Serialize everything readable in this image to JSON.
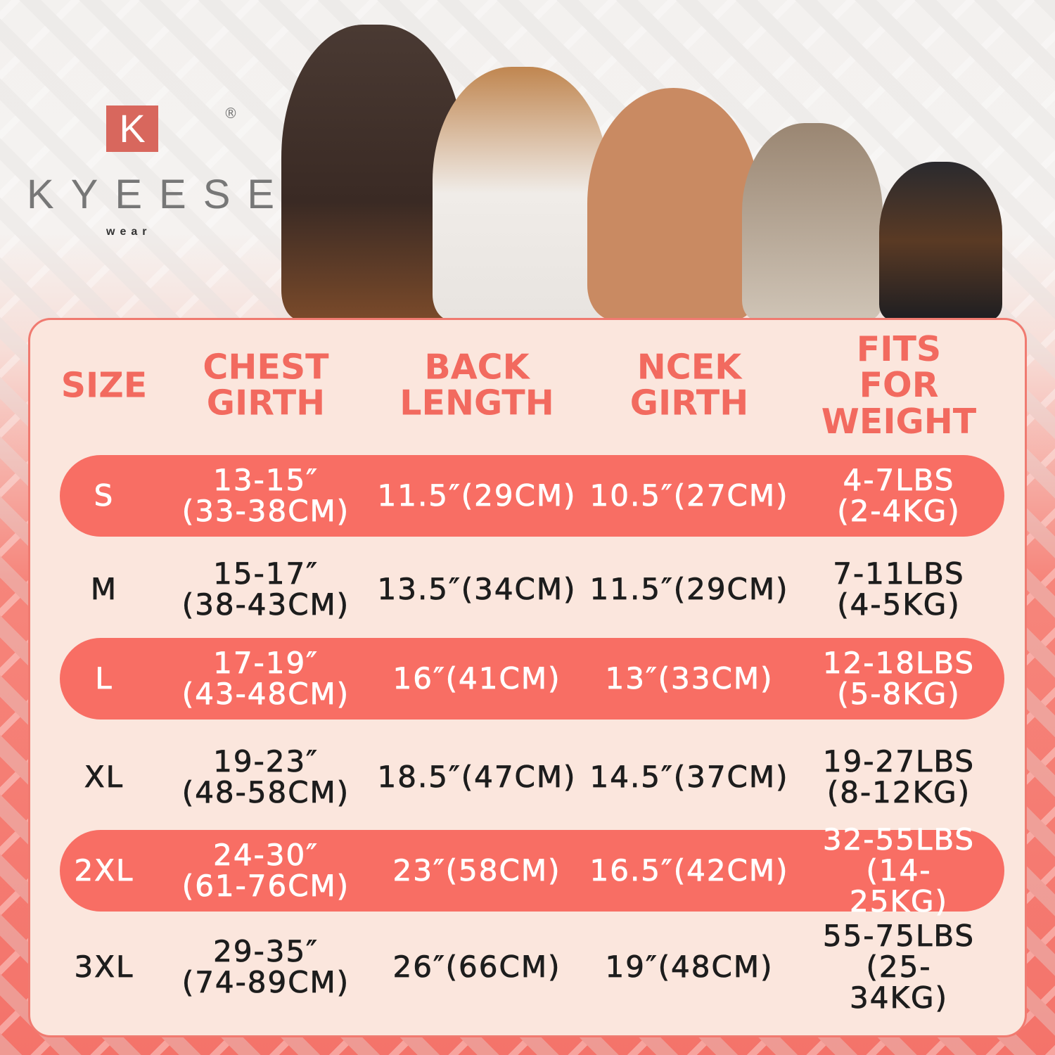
{
  "brand": {
    "mark": "K",
    "registered": "®",
    "name": "KYEESE",
    "sub": "wear",
    "color": "#d8675d"
  },
  "colors": {
    "accent": "#f86e64",
    "panel": "#fbe6dd",
    "header_text": "#f26a5f"
  },
  "table": {
    "headers": [
      "SIZE",
      "CHEST\nGIRTH",
      "BACK\nLENGTH",
      "NCEK\nGIRTH",
      "FITS FOR\nWEIGHT"
    ],
    "rows": [
      {
        "size": "S",
        "chest": "13-15″\n(33-38CM)",
        "back": "11.5″(29CM)",
        "neck": "10.5″(27CM)",
        "weight": "4-7LBS\n(2-4KG)",
        "highlight": true
      },
      {
        "size": "M",
        "chest": "15-17″\n(38-43CM)",
        "back": "13.5″(34CM)",
        "neck": "11.5″(29CM)",
        "weight": "7-11LBS\n(4-5KG)",
        "highlight": false
      },
      {
        "size": "L",
        "chest": "17-19″\n(43-48CM)",
        "back": "16″(41CM)",
        "neck": "13″(33CM)",
        "weight": "12-18LBS\n(5-8KG)",
        "highlight": true
      },
      {
        "size": "XL",
        "chest": "19-23″\n(48-58CM)",
        "back": "18.5″(47CM)",
        "neck": "14.5″(37CM)",
        "weight": "19-27LBS\n(8-12KG)",
        "highlight": false
      },
      {
        "size": "2XL",
        "chest": "24-30″\n(61-76CM)",
        "back": "23″(58CM)",
        "neck": "16.5″(42CM)",
        "weight": "32-55LBS\n(14-25KG)",
        "highlight": true
      },
      {
        "size": "3XL",
        "chest": "29-35″\n(74-89CM)",
        "back": "26″(66CM)",
        "neck": "19″(48CM)",
        "weight": "55-75LBS\n(25-34KG)",
        "highlight": false
      }
    ]
  }
}
